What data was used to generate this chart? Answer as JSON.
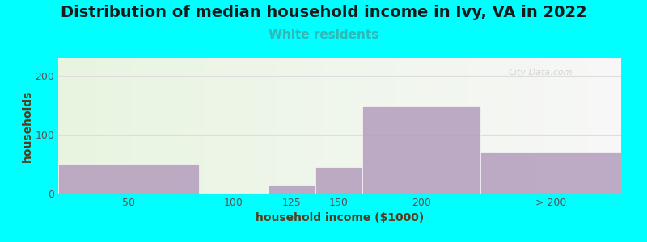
{
  "title": "Distribution of median household income in Ivy, VA in 2022",
  "subtitle": "White residents",
  "xlabel": "household income ($1000)",
  "ylabel": "households",
  "background_color": "#00FFFF",
  "bar_color": "#b39dbd",
  "categories_labels": [
    "50",
    "100",
    "125",
    "150",
    "200",
    "> 200"
  ],
  "bar_lefts": [
    0,
    75,
    112,
    137,
    162,
    225
  ],
  "bar_widths": [
    75,
    37,
    25,
    25,
    63,
    75
  ],
  "values": [
    50,
    0,
    15,
    45,
    148,
    70
  ],
  "yticks": [
    0,
    100,
    200
  ],
  "ylim": [
    0,
    230
  ],
  "xlim": [
    0,
    300
  ],
  "title_fontsize": 14,
  "subtitle_fontsize": 11,
  "subtitle_color": "#2eb8b8",
  "axis_label_fontsize": 10,
  "tick_fontsize": 9,
  "watermark": "City-Data.com"
}
